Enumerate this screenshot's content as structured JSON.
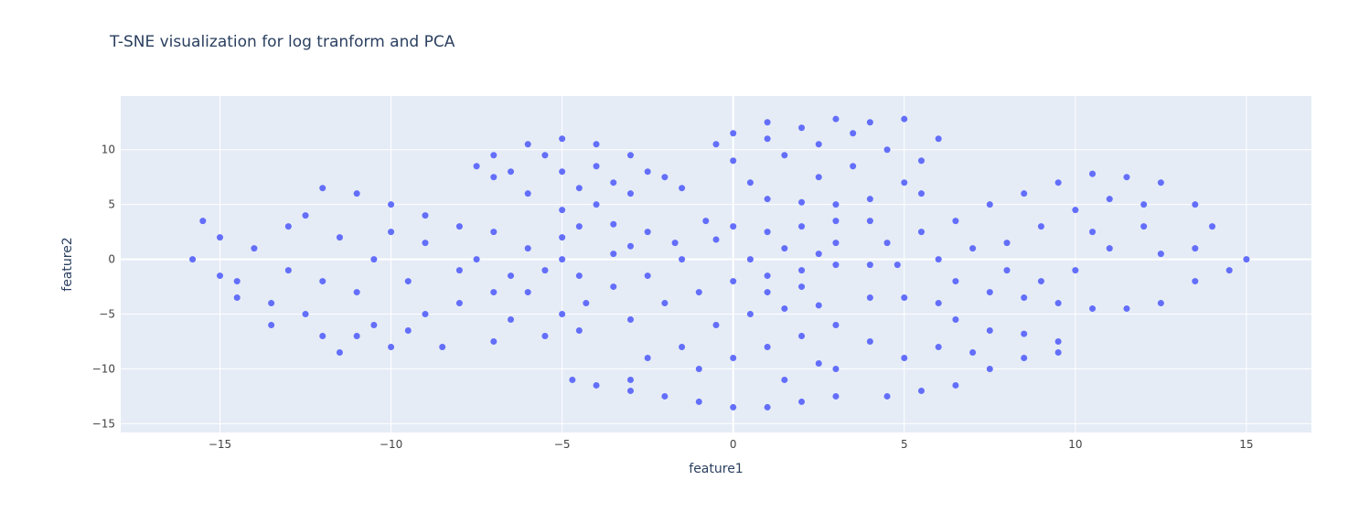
{
  "chart_data": {
    "type": "scatter",
    "title": "T-SNE visualization for log tranform and PCA",
    "x_label": "feature1",
    "y_label": "feature2",
    "color": "#636efa",
    "grid": true,
    "xlim": [
      -17.9,
      16.9
    ],
    "ylim": [
      -15.8,
      14.9
    ],
    "xticks": [
      {
        "value": -15,
        "label": "−15"
      },
      {
        "value": -10,
        "label": "−10"
      },
      {
        "value": -5,
        "label": "−5"
      },
      0,
      5,
      10,
      15
    ],
    "yticks": [
      {
        "value": -15,
        "label": "−15"
      },
      {
        "value": -10,
        "label": "−10"
      },
      {
        "value": -5,
        "label": "−5"
      },
      0,
      5,
      10
    ],
    "x": [
      -15.5,
      -15,
      -15.8,
      -14.5,
      -14,
      -13.5,
      -13,
      -12.5,
      -12,
      -11.5,
      -11,
      -12,
      -11,
      -10,
      -9,
      -8,
      -7,
      -6,
      -5.5,
      -6,
      -5,
      -4.5,
      -5.5,
      -7,
      -8.5,
      -10,
      -10.5,
      -9,
      -8,
      -7,
      -9.5,
      -10.5,
      -11.5,
      -13,
      -14.5,
      -12.5,
      -9,
      -7.5,
      -6.5,
      -11,
      -8,
      -10,
      -13.5,
      -15,
      -12,
      -9.5,
      -6.5,
      -4.3,
      -7.5,
      -7,
      -6,
      -5,
      -4,
      -3,
      -2.5,
      -1.5,
      -2,
      -3,
      -4,
      -5,
      -6,
      -7,
      -5,
      -4,
      -3.5,
      -5.5,
      -6.5,
      -4.5,
      -5,
      -4.5,
      -3.5,
      -2.5,
      -1.7,
      -1.5,
      -2.5,
      -3.5,
      -4.5,
      -5,
      -3.5,
      -3,
      -0.5,
      0,
      1,
      2,
      3,
      4,
      5,
      6,
      5.5,
      5,
      4,
      3,
      2,
      1,
      0.5,
      0,
      1.5,
      2.5,
      3.5,
      4.5,
      2.5,
      1,
      3.5,
      5.5,
      -3,
      -2,
      -1,
      0,
      1,
      2,
      3,
      4,
      4.8,
      -0.8,
      0,
      1,
      2,
      3,
      4,
      1.5,
      2.5,
      0.5,
      3,
      -0.5,
      1,
      2,
      -4,
      -3,
      -2.5,
      -1.5,
      -0.5,
      0.5,
      1.5,
      2.5,
      4,
      5,
      6,
      6.5,
      7.5,
      8.5,
      9.5,
      9.5,
      8.5,
      7.5,
      6.5,
      5.5,
      4.5,
      3,
      2,
      1,
      0,
      -1,
      -2,
      -3,
      0,
      1,
      2,
      3,
      4,
      5,
      3,
      1.5,
      -1,
      6,
      7,
      2.5,
      -4.7,
      4.5,
      5.5,
      6.5,
      7.5,
      8.5,
      9.5,
      10.5,
      11.5,
      12.5,
      13.5,
      14,
      15,
      14.5,
      13.5,
      12.5,
      11.5,
      10.5,
      9.5,
      8.5,
      7.5,
      6.5,
      6,
      8,
      9,
      10,
      11,
      12,
      11,
      10,
      9,
      12.5,
      13.5,
      10.5,
      8,
      7,
      12
    ],
    "y": [
      3.5,
      2,
      0,
      -2,
      1,
      -4,
      3,
      -5,
      -7,
      -8.5,
      -7,
      6.5,
      6,
      5,
      4,
      3,
      2.5,
      1,
      -1,
      -3,
      -5,
      -6.5,
      -7,
      -7.5,
      -8,
      -8,
      -6,
      -5,
      -4,
      -3,
      -2,
      0,
      2,
      -1,
      -3.5,
      4,
      1.5,
      0,
      -1.5,
      -3,
      -1,
      2.5,
      -6,
      -1.5,
      -2,
      -6.5,
      -5.5,
      -4,
      8.5,
      9.5,
      10.5,
      11,
      10.5,
      9.5,
      8,
      6.5,
      7.5,
      6,
      5,
      4.5,
      6,
      7.5,
      8,
      8.5,
      7,
      9.5,
      8,
      6.5,
      2,
      3,
      3.2,
      2.5,
      1.5,
      0,
      -1.5,
      -2.5,
      -1.5,
      0,
      0.5,
      1.2,
      10.5,
      11.5,
      12.5,
      12,
      12.8,
      12.5,
      12.8,
      11,
      9,
      7,
      5.5,
      5,
      5.2,
      5.5,
      7,
      9,
      9.5,
      10.5,
      8.5,
      10,
      7.5,
      11,
      11.5,
      6,
      -5.5,
      -4,
      -3,
      -2,
      -1.5,
      -1,
      -0.5,
      -0.5,
      -0.5,
      3.5,
      3,
      2.5,
      3,
      3.5,
      3.5,
      1,
      0.5,
      0,
      1.5,
      1.8,
      -3,
      -2.5,
      -11.5,
      -11,
      -9,
      -8,
      -6,
      -5,
      -4.5,
      -4.2,
      -3.5,
      -3.5,
      -4,
      -5.5,
      -6.5,
      -6.8,
      -7.5,
      -8.5,
      -9,
      -10,
      -11.5,
      -12,
      -12.5,
      -12.5,
      -13,
      -13.5,
      -13.5,
      -13,
      -12.5,
      -12,
      -9,
      -8,
      -7,
      -6,
      -7.5,
      -9,
      -10,
      -11,
      -10,
      -8,
      -8.5,
      -9.5,
      -11,
      1.5,
      2.5,
      3.5,
      5,
      6,
      7,
      7.8,
      7.5,
      7,
      5,
      3,
      0,
      -1,
      -2,
      -4,
      -4.5,
      -4.5,
      -4,
      -3.5,
      -3,
      -2,
      0,
      1.5,
      3,
      4.5,
      5.5,
      3,
      1,
      -1,
      -2,
      0.5,
      1,
      2.5,
      -1,
      1,
      5
    ]
  }
}
